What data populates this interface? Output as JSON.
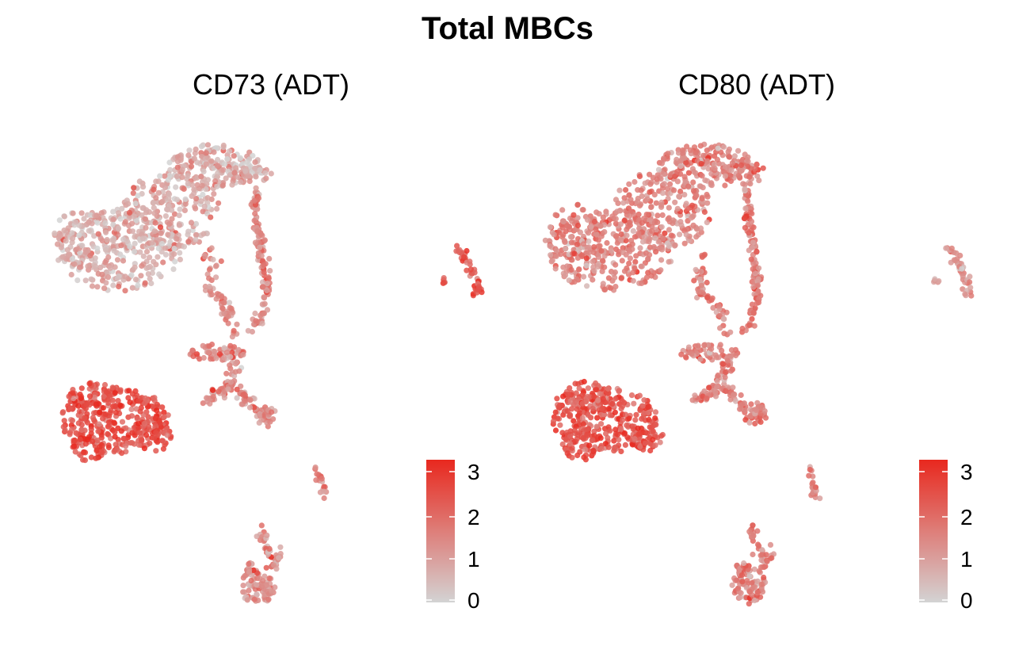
{
  "figure": {
    "title": "Total MBCs"
  },
  "chart_data": [
    {
      "type": "scatter",
      "title": "CD73 (ADT)",
      "xlabel": "",
      "ylabel": "",
      "grid": false,
      "color_scale": {
        "low_color": "#d3d3d3",
        "high_color": "#e8281e",
        "limits": [
          0,
          3
        ],
        "ticks": [
          "0",
          "1",
          "2",
          "3"
        ],
        "placement": "bottom-right"
      },
      "clusters": [
        {
          "name": "upper-large",
          "mean_expression": 0.7
        },
        {
          "name": "lower-left",
          "mean_expression": 2.3
        },
        {
          "name": "middle-trail",
          "mean_expression": 1.3
        },
        {
          "name": "far-right-small",
          "mean_expression": 2.2
        },
        {
          "name": "bottom-right-small",
          "mean_expression": 1.4
        },
        {
          "name": "bottom-center",
          "mean_expression": 1.2
        }
      ]
    },
    {
      "type": "scatter",
      "title": "CD80 (ADT)",
      "xlabel": "",
      "ylabel": "",
      "grid": false,
      "color_scale": {
        "low_color": "#d3d3d3",
        "high_color": "#e8281e",
        "limits": [
          0,
          3
        ],
        "ticks": [
          "0",
          "1",
          "2",
          "3"
        ],
        "placement": "bottom-right"
      },
      "clusters": [
        {
          "name": "upper-large",
          "mean_expression": 1.4
        },
        {
          "name": "lower-left",
          "mean_expression": 2.2
        },
        {
          "name": "middle-trail",
          "mean_expression": 1.5
        },
        {
          "name": "far-right-small",
          "mean_expression": 1.2
        },
        {
          "name": "bottom-right-small",
          "mean_expression": 1.5
        },
        {
          "name": "bottom-center",
          "mean_expression": 1.5
        }
      ]
    }
  ]
}
